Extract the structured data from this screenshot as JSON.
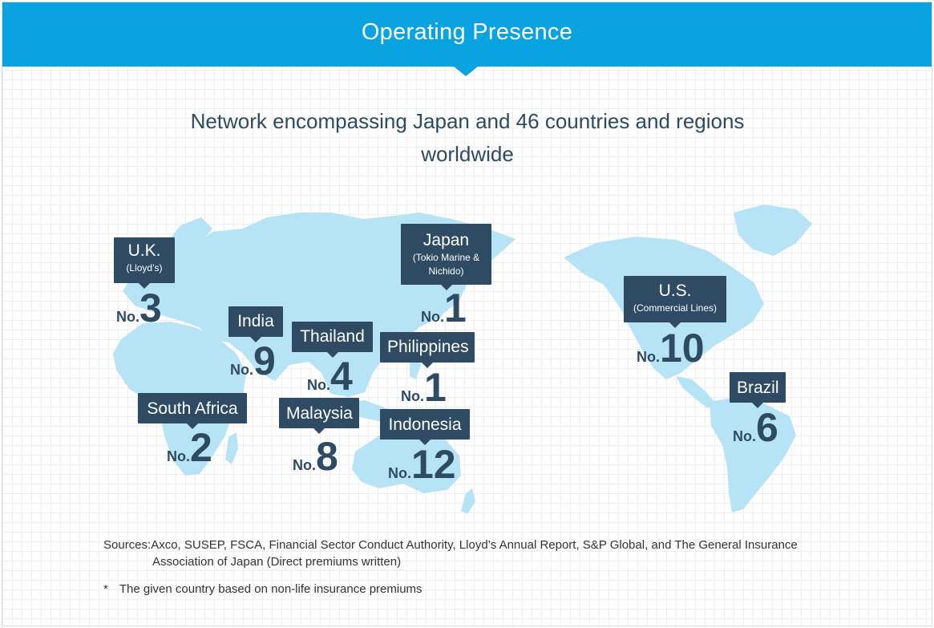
{
  "header": {
    "title": "Operating Presence"
  },
  "subtitle": {
    "line1": "Network encompassing Japan and 46 countries and regions",
    "line2": "worldwide"
  },
  "rank_prefix": "No.",
  "markers": {
    "uk": {
      "name": "U.K.",
      "sub": "(Lloyd’s)",
      "rank": "3"
    },
    "japan": {
      "name": "Japan",
      "sub1": "(Tokio Marine &",
      "sub2": "Nichido)",
      "rank": "1"
    },
    "india": {
      "name": "India",
      "rank": "9"
    },
    "thailand": {
      "name": "Thailand",
      "rank": "4"
    },
    "philippines": {
      "name": "Philippines",
      "rank": "1"
    },
    "us": {
      "name": "U.S.",
      "sub": "(Commercial Lines)",
      "rank": "10"
    },
    "south_africa": {
      "name": "South Africa",
      "rank": "2"
    },
    "malaysia": {
      "name": "Malaysia",
      "rank": "8"
    },
    "indonesia": {
      "name": "Indonesia",
      "rank": "12"
    },
    "brazil": {
      "name": "Brazil",
      "rank": "6"
    }
  },
  "sources": {
    "line1": "Sources:Axco, SUSEP, FSCA, Financial Sector Conduct Authority, Lloyd’s Annual Report, S&P Global, and The General Insurance",
    "line2": "Association of Japan (Direct premiums written)"
  },
  "note": {
    "marker": "*",
    "text": "The given country based on non-life insurance premiums"
  },
  "colors": {
    "header": "#0aa3e2",
    "label": "#2e4b63",
    "land": "#b7e3f7",
    "text": "#2c4a62"
  }
}
